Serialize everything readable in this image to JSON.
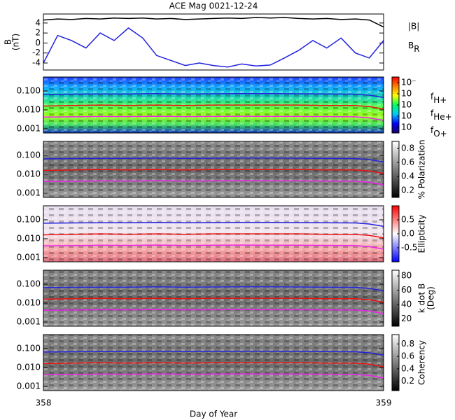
{
  "chart_data": [
    {
      "type": "line",
      "title": "ACE Mag 0021-12-24",
      "ylabel": [
        "B",
        "(nT)"
      ],
      "xlim": [
        358,
        359
      ],
      "ylim": [
        -5.4,
        5.8
      ],
      "yticks": [
        4,
        2,
        0,
        -2,
        -4
      ],
      "legend": true,
      "x": [
        358.0,
        358.042,
        358.083,
        358.125,
        358.167,
        358.208,
        358.25,
        358.292,
        358.333,
        358.375,
        358.417,
        358.458,
        358.5,
        358.542,
        358.583,
        358.625,
        358.667,
        358.708,
        358.75,
        358.792,
        358.833,
        358.875,
        358.917,
        358.958,
        359.0
      ],
      "series": [
        {
          "name": "|B|",
          "color": "#000000",
          "values": [
            4.6,
            4.8,
            4.7,
            4.9,
            4.8,
            5.0,
            4.9,
            5.0,
            4.8,
            4.9,
            4.7,
            4.8,
            4.9,
            5.0,
            4.9,
            5.1,
            5.0,
            5.1,
            4.9,
            4.8,
            4.9,
            4.7,
            4.8,
            4.6,
            3.2
          ]
        },
        {
          "name": "BR",
          "color": "#2222dd",
          "values": [
            -4.0,
            1.5,
            0.5,
            -1.0,
            2.0,
            0.5,
            3.0,
            1.0,
            -2.5,
            -3.5,
            -4.5,
            -4.0,
            -4.5,
            -4.8,
            -4.2,
            -4.6,
            -4.4,
            -3.0,
            -1.5,
            0.5,
            -1.0,
            1.0,
            -2.0,
            -3.0,
            0.5
          ]
        }
      ]
    },
    {
      "type": "spectrogram",
      "log_y": true,
      "xlim": [
        358,
        359
      ],
      "ylim": [
        0.0006,
        0.55
      ],
      "yticks": [
        {
          "value": 0.1,
          "label": "0.100"
        },
        {
          "value": 0.01,
          "label": "0.010"
        },
        {
          "value": 0.001,
          "label": "0.001"
        }
      ],
      "legend": true,
      "colorbar": {
        "lim": [
          -5.5,
          -0.5
        ],
        "ticks": [
          {
            "value": -1,
            "label": "10⁻"
          },
          {
            "value": -2,
            "label": "10"
          },
          {
            "value": -3,
            "label": "10"
          },
          {
            "value": -4,
            "label": "10"
          },
          {
            "value": -5,
            "label": "10"
          }
        ],
        "colors": [
          "#1a0060",
          "#0000ff",
          "#00c8ff",
          "#00ff60",
          "#ffff00",
          "#ff8000",
          "#ff0000"
        ]
      },
      "x": [
        358.0,
        358.083,
        358.167,
        358.25,
        358.333,
        358.417,
        358.5,
        358.583,
        358.667,
        358.75,
        358.833,
        358.917,
        358.958,
        359.0
      ],
      "series": [
        {
          "name": "fH+",
          "color": "#2222dd",
          "values": [
            0.066,
            0.068,
            0.07,
            0.069,
            0.072,
            0.07,
            0.071,
            0.073,
            0.072,
            0.071,
            0.07,
            0.068,
            0.06,
            0.045
          ]
        },
        {
          "name": "fHe+",
          "color": "#ee1111",
          "values": [
            0.016,
            0.017,
            0.018,
            0.017,
            0.018,
            0.017,
            0.018,
            0.018,
            0.018,
            0.018,
            0.017,
            0.017,
            0.015,
            0.011
          ]
        },
        {
          "name": "fO+",
          "color": "#ee22ee",
          "values": [
            0.0042,
            0.0043,
            0.0045,
            0.0044,
            0.0046,
            0.0044,
            0.0045,
            0.0046,
            0.0045,
            0.0045,
            0.0044,
            0.0043,
            0.0038,
            0.0028
          ]
        }
      ]
    },
    {
      "type": "spectrogram",
      "log_y": true,
      "xlim": [
        358,
        359
      ],
      "ylim": [
        0.0006,
        0.55
      ],
      "yticks": [
        {
          "value": 0.1,
          "label": "0.100"
        },
        {
          "value": 0.01,
          "label": "0.010"
        },
        {
          "value": 0.001,
          "label": "0.001"
        }
      ],
      "legend": false,
      "colorbar": {
        "label": "% Polarization",
        "lim": [
          0.1,
          0.9
        ],
        "ticks": [
          0.2,
          0.4,
          0.6,
          0.8
        ],
        "colors": [
          "#000000",
          "#ffffff"
        ]
      },
      "x": [
        358.0,
        358.083,
        358.167,
        358.25,
        358.333,
        358.417,
        358.5,
        358.583,
        358.667,
        358.75,
        358.833,
        358.917,
        358.958,
        359.0
      ],
      "series": [
        {
          "name": "fH+",
          "color": "#2222dd",
          "values": [
            0.066,
            0.068,
            0.07,
            0.069,
            0.072,
            0.07,
            0.071,
            0.073,
            0.072,
            0.071,
            0.07,
            0.068,
            0.06,
            0.045
          ]
        },
        {
          "name": "fHe+",
          "color": "#ee1111",
          "values": [
            0.016,
            0.017,
            0.018,
            0.017,
            0.018,
            0.017,
            0.018,
            0.018,
            0.018,
            0.018,
            0.017,
            0.017,
            0.015,
            0.011
          ]
        },
        {
          "name": "fO+",
          "color": "#ee22ee",
          "values": [
            0.0042,
            0.0043,
            0.0045,
            0.0044,
            0.0046,
            0.0044,
            0.0045,
            0.0046,
            0.0045,
            0.0045,
            0.0044,
            0.0043,
            0.0038,
            0.0028
          ]
        }
      ]
    },
    {
      "type": "spectrogram",
      "log_y": true,
      "xlim": [
        358,
        359
      ],
      "ylim": [
        0.0006,
        0.55
      ],
      "yticks": [
        {
          "value": 0.1,
          "label": "0.100"
        },
        {
          "value": 0.01,
          "label": "0.010"
        },
        {
          "value": 0.001,
          "label": "0.001"
        }
      ],
      "legend": false,
      "colorbar": {
        "label": "Ellipticity",
        "lim": [
          -1,
          1
        ],
        "ticks": [
          0.5,
          {
            "value": 0,
            "label": "0.0"
          },
          -0.5
        ],
        "colors": [
          "#0000ff",
          "#ffffff",
          "#ff0000"
        ]
      },
      "x": [
        358.0,
        358.083,
        358.167,
        358.25,
        358.333,
        358.417,
        358.5,
        358.583,
        358.667,
        358.75,
        358.833,
        358.917,
        358.958,
        359.0
      ],
      "series": [
        {
          "name": "fH+",
          "color": "#2222dd",
          "values": [
            0.066,
            0.068,
            0.07,
            0.069,
            0.072,
            0.07,
            0.071,
            0.073,
            0.072,
            0.071,
            0.07,
            0.068,
            0.06,
            0.045
          ]
        },
        {
          "name": "fHe+",
          "color": "#ee1111",
          "values": [
            0.016,
            0.017,
            0.018,
            0.017,
            0.018,
            0.017,
            0.018,
            0.018,
            0.018,
            0.018,
            0.017,
            0.017,
            0.015,
            0.011
          ]
        },
        {
          "name": "fO+",
          "color": "#ee22ee",
          "values": [
            0.0042,
            0.0043,
            0.0045,
            0.0044,
            0.0046,
            0.0044,
            0.0045,
            0.0046,
            0.0045,
            0.0045,
            0.0044,
            0.0043,
            0.0038,
            0.0028
          ]
        }
      ]
    },
    {
      "type": "spectrogram",
      "log_y": true,
      "xlim": [
        358,
        359
      ],
      "ylim": [
        0.0006,
        0.55
      ],
      "yticks": [
        {
          "value": 0.1,
          "label": "0.100"
        },
        {
          "value": 0.01,
          "label": "0.010"
        },
        {
          "value": 0.001,
          "label": "0.001"
        }
      ],
      "legend": false,
      "colorbar": {
        "label": [
          "k dot B",
          "(Deg)"
        ],
        "lim": [
          10,
          88
        ],
        "ticks": [
          80,
          60,
          40,
          20
        ],
        "colors": [
          "#000000",
          "#ffffff"
        ]
      },
      "x": [
        358.0,
        358.083,
        358.167,
        358.25,
        358.333,
        358.417,
        358.5,
        358.583,
        358.667,
        358.75,
        358.833,
        358.917,
        358.958,
        359.0
      ],
      "series": [
        {
          "name": "fH+",
          "color": "#2222dd",
          "values": [
            0.066,
            0.068,
            0.07,
            0.069,
            0.072,
            0.07,
            0.071,
            0.073,
            0.072,
            0.071,
            0.07,
            0.068,
            0.06,
            0.045
          ]
        },
        {
          "name": "fHe+",
          "color": "#ee1111",
          "values": [
            0.016,
            0.017,
            0.018,
            0.017,
            0.018,
            0.017,
            0.018,
            0.018,
            0.018,
            0.018,
            0.017,
            0.017,
            0.015,
            0.011
          ]
        },
        {
          "name": "fO+",
          "color": "#ee22ee",
          "values": [
            0.0042,
            0.0043,
            0.0045,
            0.0044,
            0.0046,
            0.0044,
            0.0045,
            0.0046,
            0.0045,
            0.0045,
            0.0044,
            0.0043,
            0.0038,
            0.0028
          ]
        }
      ]
    },
    {
      "type": "spectrogram",
      "log_y": true,
      "xlim": [
        358,
        359
      ],
      "ylim": [
        0.0006,
        0.55
      ],
      "yticks": [
        {
          "value": 0.1,
          "label": "0.100"
        },
        {
          "value": 0.01,
          "label": "0.010"
        },
        {
          "value": 0.001,
          "label": "0.001"
        }
      ],
      "xticks": [
        358,
        359
      ],
      "xlabel": "Day of Year",
      "legend": false,
      "colorbar": {
        "label": "Coherency",
        "lim": [
          0.05,
          0.95
        ],
        "ticks": [
          0.8,
          0.6,
          0.4,
          0.2
        ],
        "colors": [
          "#000000",
          "#ffffff"
        ]
      },
      "x": [
        358.0,
        358.083,
        358.167,
        358.25,
        358.333,
        358.417,
        358.5,
        358.583,
        358.667,
        358.75,
        358.833,
        358.917,
        358.958,
        359.0
      ],
      "series": [
        {
          "name": "fH+",
          "color": "#2222dd",
          "values": [
            0.066,
            0.068,
            0.07,
            0.069,
            0.072,
            0.07,
            0.071,
            0.073,
            0.072,
            0.071,
            0.07,
            0.068,
            0.06,
            0.045
          ]
        },
        {
          "name": "fHe+",
          "color": "#ee1111",
          "values": [
            0.016,
            0.017,
            0.018,
            0.017,
            0.018,
            0.017,
            0.018,
            0.018,
            0.018,
            0.018,
            0.017,
            0.017,
            0.015,
            0.011
          ]
        },
        {
          "name": "fO+",
          "color": "#ee22ee",
          "values": [
            0.0042,
            0.0043,
            0.0045,
            0.0044,
            0.0046,
            0.0044,
            0.0045,
            0.0046,
            0.0045,
            0.0045,
            0.0044,
            0.0043,
            0.0038,
            0.0028
          ]
        }
      ]
    }
  ]
}
